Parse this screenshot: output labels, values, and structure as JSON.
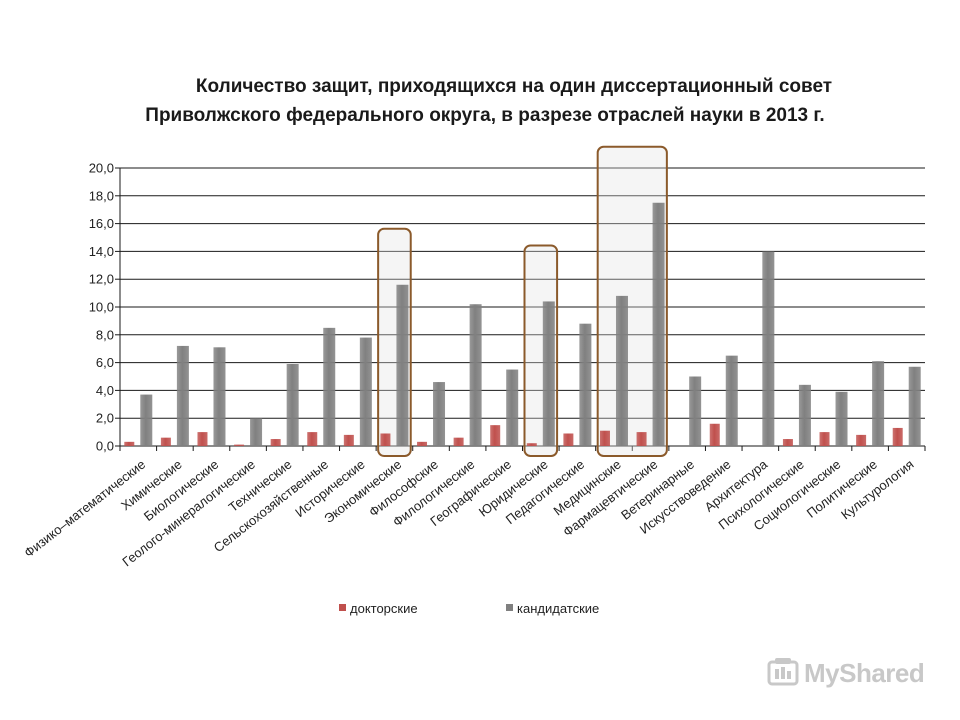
{
  "title": {
    "line1": "Количество защит, приходящихся на один диссертационный совет",
    "line2": "Приволжского федерального округа, в разрезе отраслей науки в 2013 г."
  },
  "chart_data": {
    "type": "bar",
    "title": "Количество защит, приходящихся на один диссертационный совет Приволжского федерального округа, в разрезе отраслей науки в 2013 г.",
    "xlabel": "",
    "ylabel": "",
    "ylim": [
      0,
      20
    ],
    "yticks": [
      "0,0",
      "2,0",
      "4,0",
      "6,0",
      "8,0",
      "10,0",
      "12,0",
      "14,0",
      "16,0",
      "18,0",
      "20,0"
    ],
    "grid": true,
    "categories": [
      "Физико–математические",
      "Химические",
      "Биологические",
      "Геолого-минералогические",
      "Технические",
      "Сельскохозяйственные",
      "Исторические",
      "Экономические",
      "Философские",
      "Филологические",
      "Географические",
      "Юридические",
      "Педагогические",
      "Медицинские",
      "Фармацевтические",
      "Ветеринарные",
      "Искусствоведение",
      "Архитектура",
      "Психологические",
      "Социологические",
      "Политические",
      "Культурология"
    ],
    "series": [
      {
        "name": "докторские",
        "color": "#c0504d",
        "values": [
          0.3,
          0.6,
          1.0,
          0.1,
          0.5,
          1.0,
          0.8,
          0.9,
          0.3,
          0.6,
          1.5,
          0.2,
          0.9,
          1.1,
          1.0,
          0.0,
          1.6,
          0.0,
          0.5,
          1.0,
          0.8,
          1.3
        ]
      },
      {
        "name": "кандидатские",
        "color": "#808080",
        "values": [
          3.7,
          7.2,
          7.1,
          2.0,
          5.9,
          8.5,
          7.8,
          11.6,
          4.6,
          10.2,
          5.5,
          10.4,
          8.8,
          10.8,
          17.5,
          5.0,
          6.5,
          14.0,
          4.4,
          3.9,
          6.1,
          5.7
        ]
      }
    ],
    "highlighted_categories": [
      "Экономические",
      "Юридические",
      "Медицинские",
      "Фармацевтические"
    ],
    "highlight_color": "#8b5a2b",
    "legend_position": "bottom"
  },
  "legend": {
    "doctoral": "докторские",
    "candidate": "кандидатские"
  },
  "watermark": {
    "text": "MyShared"
  }
}
